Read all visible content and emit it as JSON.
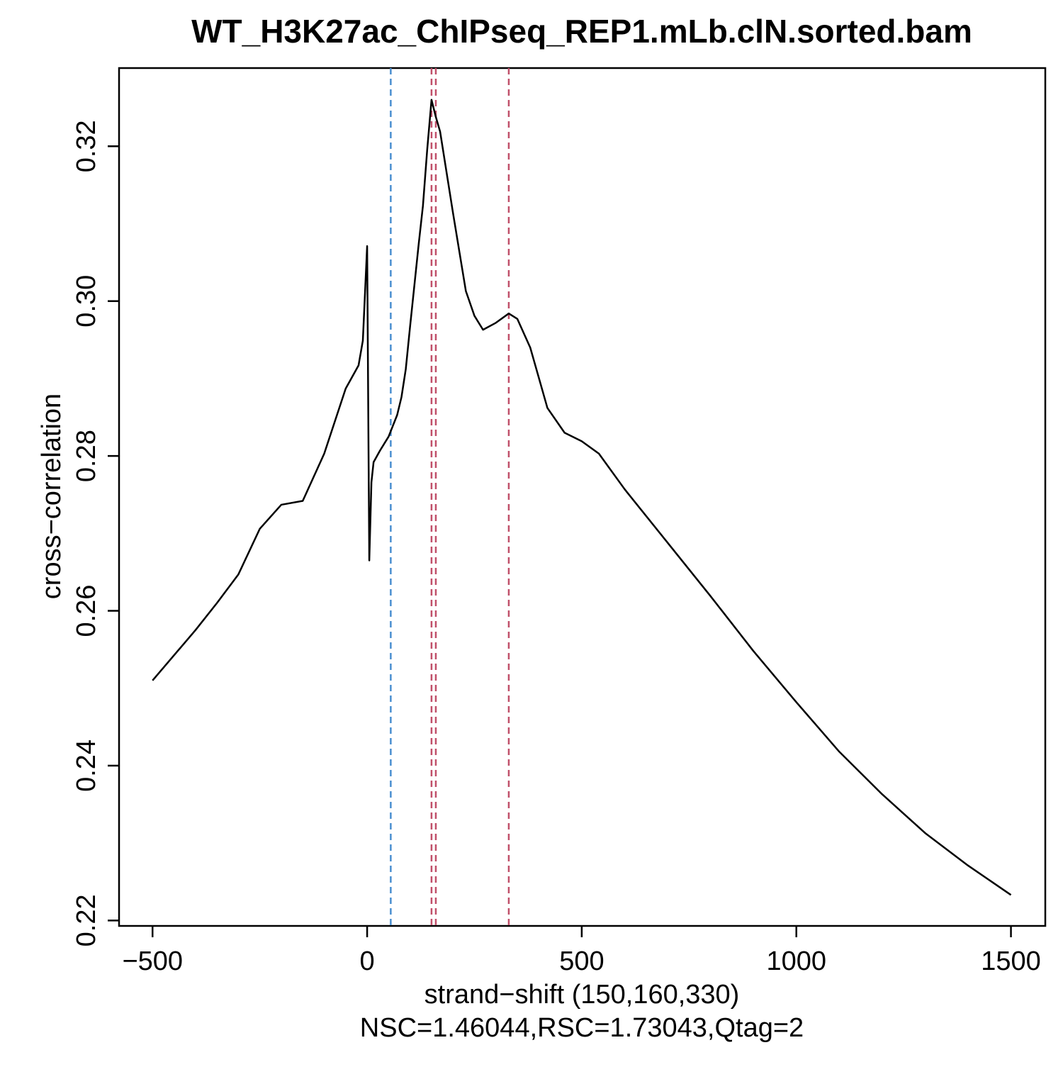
{
  "chart_data": {
    "type": "line",
    "title": "WT_H3K27ac_ChIPseq_REP1.mLb.clN.sorted.bam",
    "x_label": "strand−shift (150,160,330)",
    "subtitle": "NSC=1.46044,RSC=1.73043,Qtag=2",
    "y_label": "cross−correlation",
    "xlim": [
      -578,
      1580
    ],
    "ylim": [
      0.2193,
      0.3301
    ],
    "xticks": [
      {
        "value": -500,
        "label": "−500"
      },
      0,
      500,
      1000,
      1500
    ],
    "yticks": [
      0.22,
      0.24,
      0.26,
      0.28,
      {
        "value": 0.3,
        "label": "0.30"
      },
      0.32
    ],
    "vlines": [
      {
        "value": 55,
        "color": "#4a8fd0"
      },
      {
        "value": 150,
        "color": "#c0506a"
      },
      {
        "value": 160,
        "color": "#c0506a"
      },
      {
        "value": 330,
        "color": "#c0506a"
      }
    ],
    "series": [
      {
        "color": "#000000",
        "x": [
          -500,
          -400,
          -350,
          -300,
          -250,
          -200,
          -150,
          -100,
          -50,
          -20,
          -10,
          0,
          5,
          10,
          15,
          30,
          50,
          60,
          70,
          80,
          90,
          100,
          120,
          130,
          140,
          150,
          160,
          170,
          200,
          230,
          250,
          270,
          300,
          330,
          350,
          380,
          420,
          460,
          500,
          540,
          600,
          700,
          800,
          900,
          1000,
          1100,
          1200,
          1300,
          1400,
          1500
        ],
        "values": [
          0.251,
          0.2575,
          0.261,
          0.2647,
          0.2706,
          0.2737,
          0.2742,
          0.2803,
          0.2887,
          0.2917,
          0.2949,
          0.3071,
          0.2665,
          0.2766,
          0.2792,
          0.2807,
          0.2825,
          0.2839,
          0.2853,
          0.2876,
          0.2912,
          0.2967,
          0.3073,
          0.3123,
          0.3196,
          0.326,
          0.3238,
          0.3219,
          0.3114,
          0.3013,
          0.2981,
          0.2963,
          0.2972,
          0.2984,
          0.2977,
          0.294,
          0.2862,
          0.283,
          0.2819,
          0.2803,
          0.2757,
          0.2688,
          0.2619,
          0.2548,
          0.2482,
          0.2418,
          0.2363,
          0.2313,
          0.2271,
          0.2233
        ]
      }
    ]
  }
}
